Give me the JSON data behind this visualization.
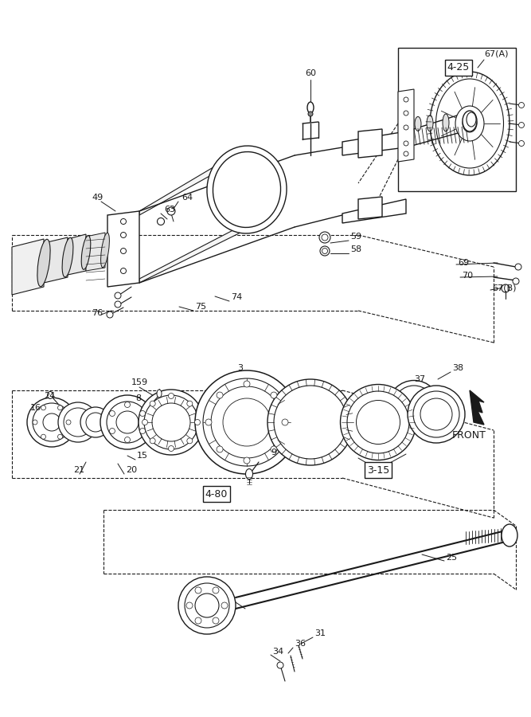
{
  "bg_color": "#ffffff",
  "line_color": "#1a1a1a",
  "figsize": [
    6.67,
    9.0
  ],
  "dpi": 100
}
